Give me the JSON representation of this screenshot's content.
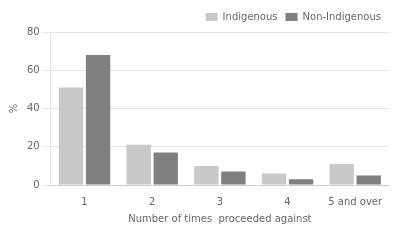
{
  "chart_data": {
    "type": "bar",
    "categories": [
      "1",
      "2",
      "3",
      "4",
      "5 and over"
    ],
    "series": [
      {
        "name": "Indigenous",
        "color": "#c8c8c8",
        "values": [
          51,
          21,
          10,
          6,
          11
        ]
      },
      {
        "name": "Non-Indigenous",
        "color": "#808080",
        "values": [
          68,
          17,
          7,
          3,
          5
        ]
      }
    ],
    "xlabel": "Number of times  proceeded against",
    "ylabel": "%",
    "ylim": [
      0,
      80
    ],
    "yticks": [
      0,
      20,
      40,
      60,
      80
    ],
    "grid": true,
    "legend": "upper right"
  }
}
